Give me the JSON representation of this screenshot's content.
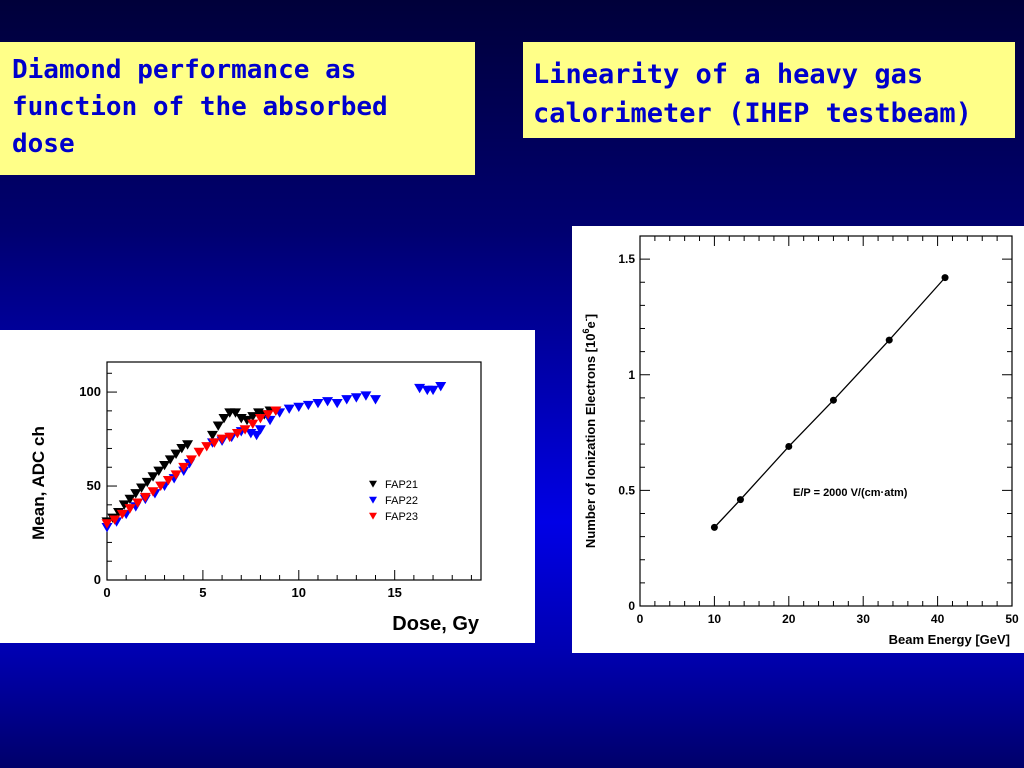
{
  "slide": {
    "left_heading": [
      "Diamond performance as",
      "function of the absorbed",
      "dose"
    ],
    "right_heading": [
      "Linearity of a heavy gas",
      "calorimeter (IHEP testbeam)"
    ]
  },
  "chart_data": [
    {
      "type": "scatter",
      "title": "",
      "xlabel": "Dose, Gy",
      "ylabel": "Mean, ADC ch",
      "xlim": [
        0,
        19.5
      ],
      "ylim": [
        0,
        116
      ],
      "xticks": [
        0,
        5,
        10,
        15
      ],
      "yticks": [
        0,
        50,
        100
      ],
      "marker": "triangle-down",
      "legend": {
        "placement": "center-right"
      },
      "series": [
        {
          "name": "FAP21",
          "color": "#000000",
          "points": [
            [
              0,
              31
            ],
            [
              0.3,
              33
            ],
            [
              0.6,
              36
            ],
            [
              0.9,
              40
            ],
            [
              1.2,
              43
            ],
            [
              1.5,
              46
            ],
            [
              1.8,
              49
            ],
            [
              2.1,
              52
            ],
            [
              2.4,
              55
            ],
            [
              2.7,
              58
            ],
            [
              3.0,
              61
            ],
            [
              3.3,
              64
            ],
            [
              3.6,
              67
            ],
            [
              3.9,
              70
            ],
            [
              4.2,
              72
            ],
            [
              5.5,
              77
            ],
            [
              5.8,
              82
            ],
            [
              6.1,
              86
            ],
            [
              6.4,
              89
            ],
            [
              6.7,
              89
            ],
            [
              7.0,
              86
            ],
            [
              7.3,
              85
            ],
            [
              7.6,
              87
            ],
            [
              7.9,
              89
            ],
            [
              8.2,
              88
            ],
            [
              8.5,
              90
            ],
            [
              8.8,
              90
            ]
          ]
        },
        {
          "name": "FAP22",
          "color": "#0000ff",
          "points": [
            [
              0,
              28
            ],
            [
              0.5,
              31
            ],
            [
              1.0,
              35
            ],
            [
              1.5,
              39
            ],
            [
              2.0,
              43
            ],
            [
              2.5,
              46
            ],
            [
              3.0,
              50
            ],
            [
              3.5,
              54
            ],
            [
              4.0,
              58
            ],
            [
              4.3,
              62
            ],
            [
              5.5,
              73
            ],
            [
              6.0,
              74
            ],
            [
              6.5,
              76
            ],
            [
              7.0,
              79
            ],
            [
              7.5,
              78
            ],
            [
              7.8,
              77
            ],
            [
              8.0,
              80
            ],
            [
              8.5,
              85
            ],
            [
              9.0,
              89
            ],
            [
              9.5,
              91
            ],
            [
              10.0,
              92
            ],
            [
              10.5,
              93
            ],
            [
              11.0,
              94
            ],
            [
              11.5,
              95
            ],
            [
              12.0,
              94
            ],
            [
              12.5,
              96
            ],
            [
              13.0,
              97
            ],
            [
              13.5,
              98
            ],
            [
              14.0,
              96
            ],
            [
              16.3,
              102
            ],
            [
              16.7,
              101
            ],
            [
              17.0,
              101
            ],
            [
              17.4,
              103
            ]
          ]
        },
        {
          "name": "FAP23",
          "color": "#ff0000",
          "points": [
            [
              0,
              30
            ],
            [
              0.4,
              32
            ],
            [
              0.8,
              35
            ],
            [
              1.2,
              38
            ],
            [
              1.6,
              41
            ],
            [
              2.0,
              44
            ],
            [
              2.4,
              47
            ],
            [
              2.8,
              50
            ],
            [
              3.2,
              53
            ],
            [
              3.6,
              56
            ],
            [
              4.0,
              60
            ],
            [
              4.4,
              64
            ],
            [
              4.8,
              68
            ],
            [
              5.2,
              71
            ],
            [
              5.6,
              73
            ],
            [
              6.0,
              75
            ],
            [
              6.4,
              76
            ],
            [
              6.8,
              78
            ],
            [
              7.2,
              80
            ],
            [
              7.6,
              83
            ],
            [
              8.0,
              86
            ],
            [
              8.4,
              88
            ],
            [
              8.8,
              90
            ]
          ]
        }
      ]
    },
    {
      "type": "line",
      "title": "",
      "xlabel": "Beam Energy [GeV]",
      "ylabel": "Number of Ionization Electrons [10^6 e^-]",
      "xlim": [
        0,
        50
      ],
      "ylim": [
        0,
        1.6
      ],
      "xticks": [
        0,
        10,
        20,
        30,
        40,
        50
      ],
      "yticks": [
        0,
        0.5,
        1,
        1.5
      ],
      "annotation": "E/P = 2000 V/(cm·atm)",
      "series": [
        {
          "name": "",
          "x": [
            10,
            13.5,
            20,
            26,
            33.5,
            41
          ],
          "y": [
            0.34,
            0.46,
            0.69,
            0.89,
            1.15,
            1.42
          ]
        }
      ]
    }
  ]
}
